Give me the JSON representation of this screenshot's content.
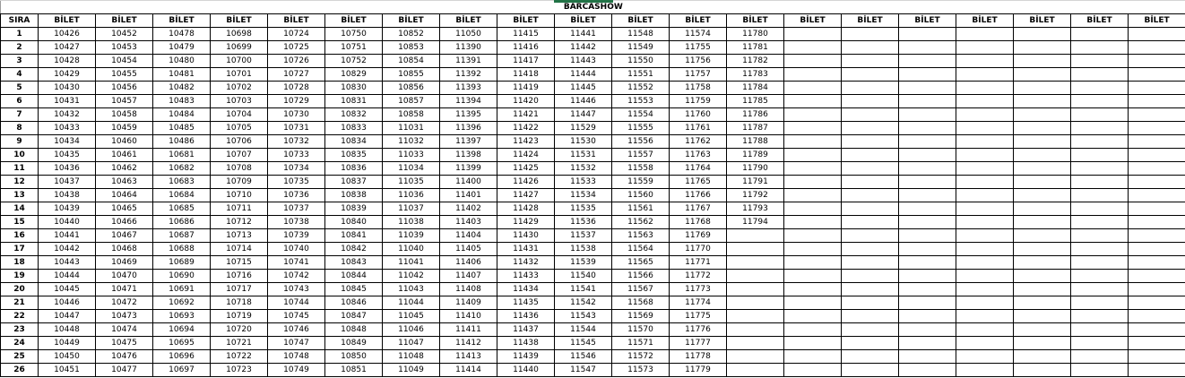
{
  "sheet_title": "BARCASHOW",
  "headers": [
    "SIRA",
    "BİLET",
    "BİLET",
    "BİLET",
    "BİLET",
    "BİLET",
    "BİLET",
    "BİLET",
    "BİLET",
    "BİLET",
    "BİLET",
    "BİLET",
    "BİLET",
    "BİLET",
    "BİLET",
    "BİLET",
    "BİLET",
    "BİLET",
    "BİLET",
    "BİLET",
    "BİLET"
  ],
  "accent_color": "#217346",
  "rows": [
    {
      "sira": "1",
      "tickets": [
        "10426",
        "10452",
        "10478",
        "10698",
        "10724",
        "10750",
        "10852",
        "11050",
        "11415",
        "11441",
        "11548",
        "11574",
        "11780"
      ]
    },
    {
      "sira": "2",
      "tickets": [
        "10427",
        "10453",
        "10479",
        "10699",
        "10725",
        "10751",
        "10853",
        "11390",
        "11416",
        "11442",
        "11549",
        "11755",
        "11781"
      ]
    },
    {
      "sira": "3",
      "tickets": [
        "10428",
        "10454",
        "10480",
        "10700",
        "10726",
        "10752",
        "10854",
        "11391",
        "11417",
        "11443",
        "11550",
        "11756",
        "11782"
      ]
    },
    {
      "sira": "4",
      "tickets": [
        "10429",
        "10455",
        "10481",
        "10701",
        "10727",
        "10829",
        "10855",
        "11392",
        "11418",
        "11444",
        "11551",
        "11757",
        "11783"
      ]
    },
    {
      "sira": "5",
      "tickets": [
        "10430",
        "10456",
        "10482",
        "10702",
        "10728",
        "10830",
        "10856",
        "11393",
        "11419",
        "11445",
        "11552",
        "11758",
        "11784"
      ]
    },
    {
      "sira": "6",
      "tickets": [
        "10431",
        "10457",
        "10483",
        "10703",
        "10729",
        "10831",
        "10857",
        "11394",
        "11420",
        "11446",
        "11553",
        "11759",
        "11785"
      ]
    },
    {
      "sira": "7",
      "tickets": [
        "10432",
        "10458",
        "10484",
        "10704",
        "10730",
        "10832",
        "10858",
        "11395",
        "11421",
        "11447",
        "11554",
        "11760",
        "11786"
      ]
    },
    {
      "sira": "8",
      "tickets": [
        "10433",
        "10459",
        "10485",
        "10705",
        "10731",
        "10833",
        "11031",
        "11396",
        "11422",
        "11529",
        "11555",
        "11761",
        "11787"
      ]
    },
    {
      "sira": "9",
      "tickets": [
        "10434",
        "10460",
        "10486",
        "10706",
        "10732",
        "10834",
        "11032",
        "11397",
        "11423",
        "11530",
        "11556",
        "11762",
        "11788"
      ]
    },
    {
      "sira": "10",
      "tickets": [
        "10435",
        "10461",
        "10681",
        "10707",
        "10733",
        "10835",
        "11033",
        "11398",
        "11424",
        "11531",
        "11557",
        "11763",
        "11789"
      ]
    },
    {
      "sira": "11",
      "tickets": [
        "10436",
        "10462",
        "10682",
        "10708",
        "10734",
        "10836",
        "11034",
        "11399",
        "11425",
        "11532",
        "11558",
        "11764",
        "11790"
      ]
    },
    {
      "sira": "12",
      "tickets": [
        "10437",
        "10463",
        "10683",
        "10709",
        "10735",
        "10837",
        "11035",
        "11400",
        "11426",
        "11533",
        "11559",
        "11765",
        "11791"
      ]
    },
    {
      "sira": "13",
      "tickets": [
        "10438",
        "10464",
        "10684",
        "10710",
        "10736",
        "10838",
        "11036",
        "11401",
        "11427",
        "11534",
        "11560",
        "11766",
        "11792"
      ]
    },
    {
      "sira": "14",
      "tickets": [
        "10439",
        "10465",
        "10685",
        "10711",
        "10737",
        "10839",
        "11037",
        "11402",
        "11428",
        "11535",
        "11561",
        "11767",
        "11793"
      ]
    },
    {
      "sira": "15",
      "tickets": [
        "10440",
        "10466",
        "10686",
        "10712",
        "10738",
        "10840",
        "11038",
        "11403",
        "11429",
        "11536",
        "11562",
        "11768",
        "11794"
      ]
    },
    {
      "sira": "16",
      "tickets": [
        "10441",
        "10467",
        "10687",
        "10713",
        "10739",
        "10841",
        "11039",
        "11404",
        "11430",
        "11537",
        "11563",
        "11769"
      ]
    },
    {
      "sira": "17",
      "tickets": [
        "10442",
        "10468",
        "10688",
        "10714",
        "10740",
        "10842",
        "11040",
        "11405",
        "11431",
        "11538",
        "11564",
        "11770"
      ]
    },
    {
      "sira": "18",
      "tickets": [
        "10443",
        "10469",
        "10689",
        "10715",
        "10741",
        "10843",
        "11041",
        "11406",
        "11432",
        "11539",
        "11565",
        "11771"
      ]
    },
    {
      "sira": "19",
      "tickets": [
        "10444",
        "10470",
        "10690",
        "10716",
        "10742",
        "10844",
        "11042",
        "11407",
        "11433",
        "11540",
        "11566",
        "11772"
      ]
    },
    {
      "sira": "20",
      "tickets": [
        "10445",
        "10471",
        "10691",
        "10717",
        "10743",
        "10845",
        "11043",
        "11408",
        "11434",
        "11541",
        "11567",
        "11773"
      ]
    },
    {
      "sira": "21",
      "tickets": [
        "10446",
        "10472",
        "10692",
        "10718",
        "10744",
        "10846",
        "11044",
        "11409",
        "11435",
        "11542",
        "11568",
        "11774"
      ]
    },
    {
      "sira": "22",
      "tickets": [
        "10447",
        "10473",
        "10693",
        "10719",
        "10745",
        "10847",
        "11045",
        "11410",
        "11436",
        "11543",
        "11569",
        "11775"
      ]
    },
    {
      "sira": "23",
      "tickets": [
        "10448",
        "10474",
        "10694",
        "10720",
        "10746",
        "10848",
        "11046",
        "11411",
        "11437",
        "11544",
        "11570",
        "11776"
      ]
    },
    {
      "sira": "24",
      "tickets": [
        "10449",
        "10475",
        "10695",
        "10721",
        "10747",
        "10849",
        "11047",
        "11412",
        "11438",
        "11545",
        "11571",
        "11777"
      ]
    },
    {
      "sira": "25",
      "tickets": [
        "10450",
        "10476",
        "10696",
        "10722",
        "10748",
        "10850",
        "11048",
        "11413",
        "11439",
        "11546",
        "11572",
        "11778"
      ]
    },
    {
      "sira": "26",
      "tickets": [
        "10451",
        "10477",
        "10697",
        "10723",
        "10749",
        "10851",
        "11049",
        "11414",
        "11440",
        "11547",
        "11573",
        "11779"
      ]
    }
  ]
}
